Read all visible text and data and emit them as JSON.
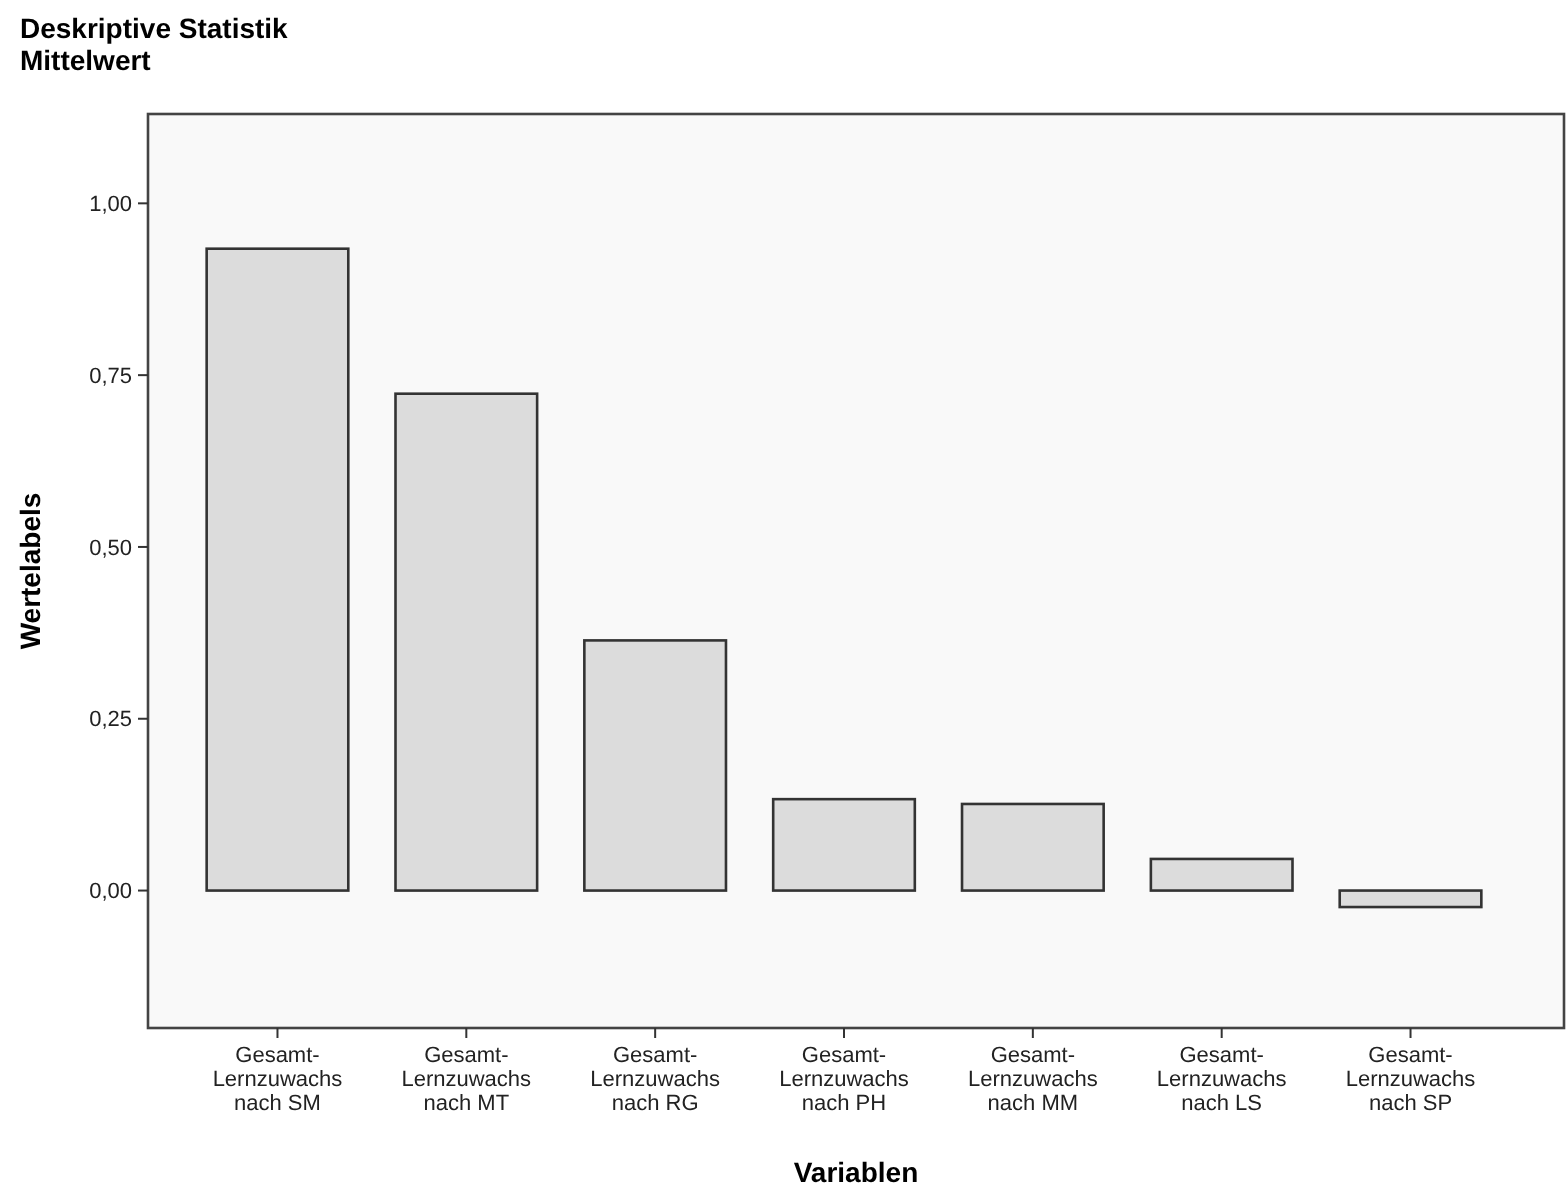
{
  "chart_data": {
    "type": "bar",
    "title": "Deskriptive Statistik",
    "subtitle": "Mittelwert",
    "xlabel": "Variablen",
    "ylabel": "Wertelabels",
    "categories": [
      "Gesamt-\nLernzuwachs\nnach SM",
      "Gesamt-\nLernzuwachs\nnach MT",
      "Gesamt-\nLernzuwachs\nnach RG",
      "Gesamt-\nLernzuwachs\nnach PH",
      "Gesamt-\nLernzuwachs\nnach MM",
      "Gesamt-\nLernzuwachs\nnach LS",
      "Gesamt-\nLernzuwachs\nnach SP"
    ],
    "values": [
      0.934,
      0.723,
      0.364,
      0.133,
      0.126,
      0.046,
      -0.024
    ],
    "color": "#dcdcdc",
    "ylim": [
      -0.2,
      1.13
    ],
    "yticks": [
      {
        "value": 0,
        "label": "0,00"
      },
      {
        "value": 0.25,
        "label": "0,25"
      },
      {
        "value": 0.5,
        "label": "0,50"
      },
      {
        "value": 0.75,
        "label": "0,75"
      },
      {
        "value": 1,
        "label": "1,00"
      }
    ]
  }
}
